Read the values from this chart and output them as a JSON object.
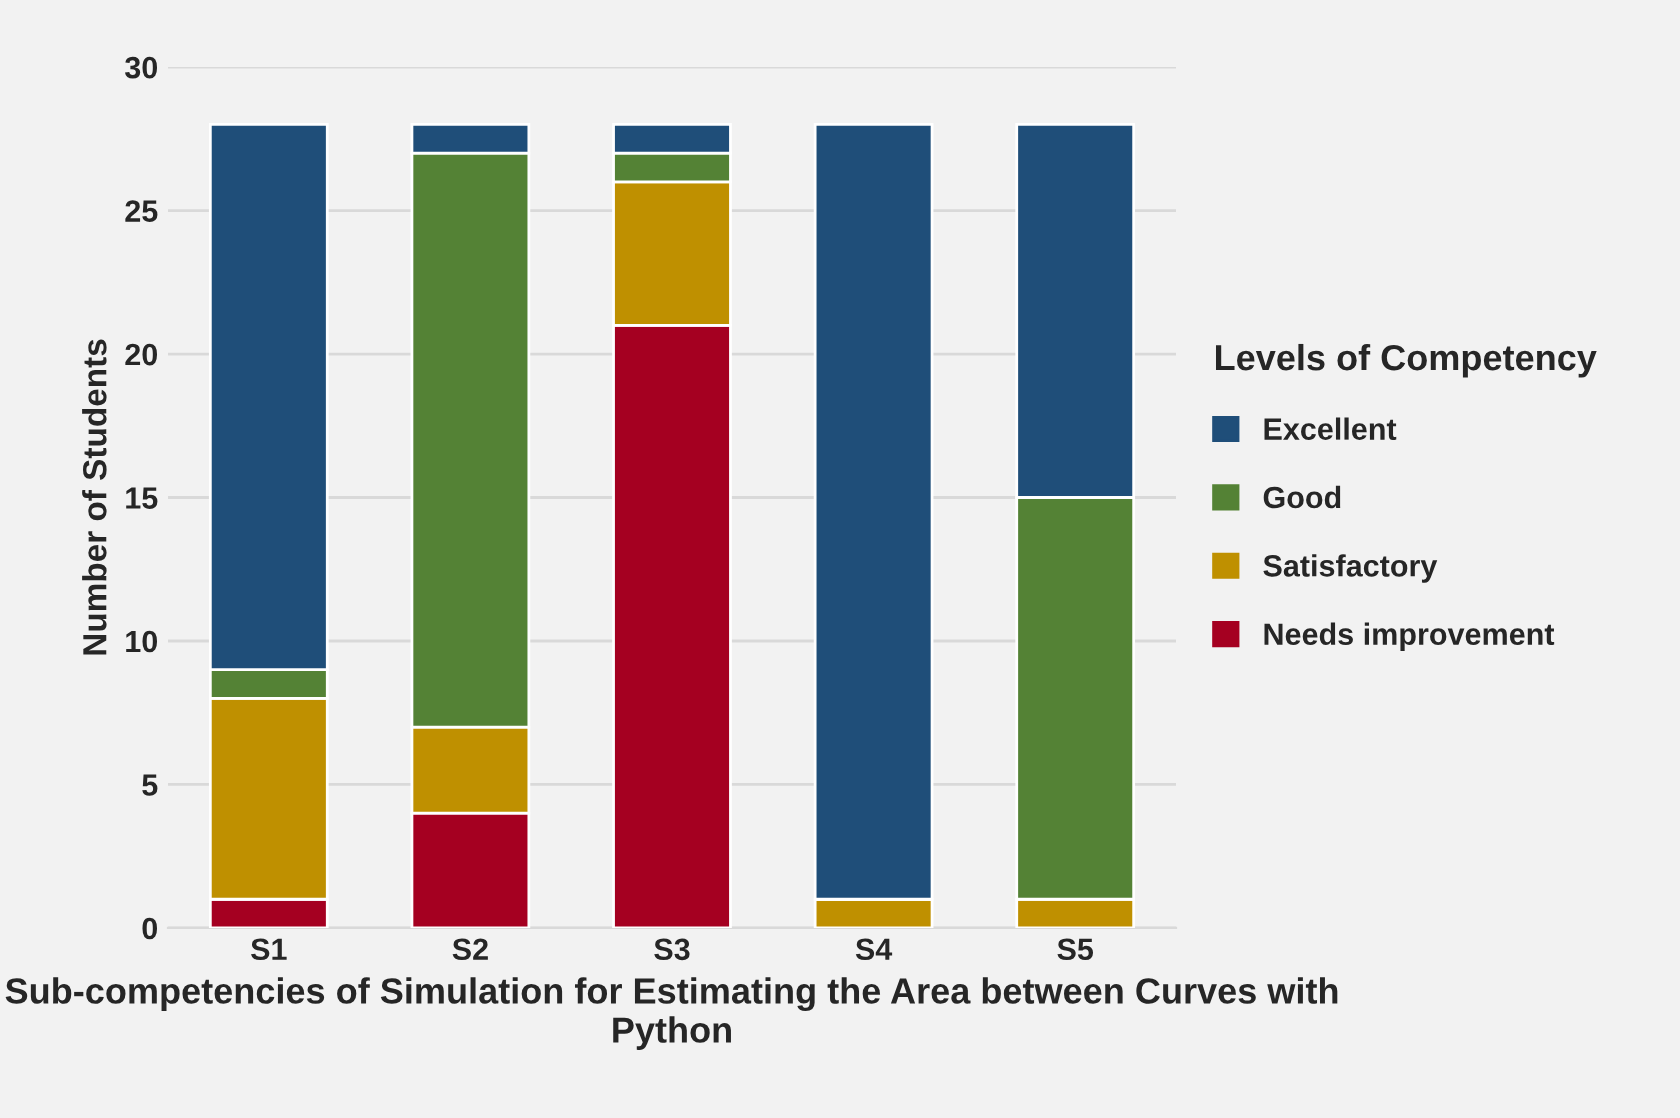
{
  "chart_data": {
    "type": "bar",
    "stacked": true,
    "xlabel": "Sub-competencies of Simulation for Estimating the Area between Curves with Python",
    "ylabel": "Number of Students",
    "legend_title": "Levels of Competency",
    "categories": [
      "S1",
      "S2",
      "S3",
      "S4",
      "S5"
    ],
    "series": [
      {
        "name": "Needs improvement",
        "color": "#a50021",
        "values": [
          1,
          4,
          21,
          0,
          0
        ]
      },
      {
        "name": "Satisfactory",
        "color": "#bf9000",
        "values": [
          7,
          3,
          5,
          1,
          1
        ]
      },
      {
        "name": "Good",
        "color": "#548235",
        "values": [
          1,
          20,
          1,
          0,
          14
        ]
      },
      {
        "name": "Excellent",
        "color": "#1f4e79",
        "values": [
          19,
          1,
          1,
          27,
          13
        ]
      }
    ],
    "ylim": [
      0,
      30
    ],
    "yticks": [
      0,
      5,
      10,
      15,
      20,
      25,
      30
    ],
    "grid": "y",
    "legend": "right"
  }
}
